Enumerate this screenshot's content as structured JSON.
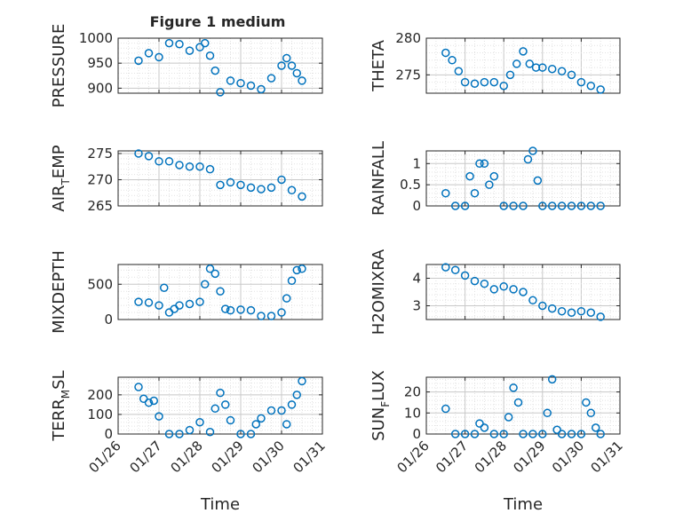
{
  "figure": {
    "title": "Figure 1 medium",
    "marker_color": "#0072BD"
  },
  "chart_data": [
    {
      "type": "scatter",
      "id": "pressure",
      "title": "Figure 1 medium",
      "ylabel": "PRESSURE",
      "ylabel_sub": "",
      "ylabel_tail": "",
      "xlabel": "",
      "xlim": [
        "01/26",
        "01/31"
      ],
      "ylim": [
        890,
        1000
      ],
      "yticks": [
        900,
        950,
        1000
      ],
      "ytick_labels": [
        "900",
        "950",
        "1000"
      ],
      "grid": true,
      "show_xticklabels": false,
      "x": [
        "01/26 12:00",
        "01/26 18:00",
        "01/27 00:00",
        "01/27 06:00",
        "01/27 12:00",
        "01/27 18:00",
        "01/28 00:00",
        "01/28 03:00",
        "01/28 06:00",
        "01/28 09:00",
        "01/28 12:00",
        "01/28 18:00",
        "01/29 00:00",
        "01/29 06:00",
        "01/29 12:00",
        "01/29 18:00",
        "01/30 00:00",
        "01/30 03:00",
        "01/30 06:00",
        "01/30 09:00",
        "01/30 12:00"
      ],
      "y": [
        955,
        970,
        962,
        990,
        988,
        975,
        982,
        990,
        965,
        935,
        892,
        915,
        910,
        905,
        898,
        920,
        945,
        960,
        945,
        930,
        915
      ]
    },
    {
      "type": "scatter",
      "id": "theta",
      "title": "",
      "ylabel": "THETA",
      "ylabel_sub": "",
      "ylabel_tail": "",
      "xlabel": "",
      "xlim": [
        "01/26",
        "01/31"
      ],
      "ylim": [
        272.5,
        280
      ],
      "yticks": [
        275,
        280
      ],
      "ytick_labels": [
        "275",
        "280"
      ],
      "grid": true,
      "show_xticklabels": false,
      "x": [
        "01/26 12:00",
        "01/26 16:00",
        "01/26 20:00",
        "01/27 00:00",
        "01/27 06:00",
        "01/27 12:00",
        "01/27 18:00",
        "01/28 00:00",
        "01/28 04:00",
        "01/28 08:00",
        "01/28 12:00",
        "01/28 16:00",
        "01/28 20:00",
        "01/29 00:00",
        "01/29 06:00",
        "01/29 12:00",
        "01/29 18:00",
        "01/30 00:00",
        "01/30 06:00",
        "01/30 12:00"
      ],
      "y": [
        278,
        277,
        275.5,
        274,
        273.8,
        274,
        274,
        273.5,
        275,
        276.5,
        278.2,
        276.5,
        276,
        276,
        275.8,
        275.5,
        275,
        274,
        273.5,
        273
      ]
    },
    {
      "type": "scatter",
      "id": "air_temp",
      "title": "",
      "ylabel": "AIR",
      "ylabel_sub": "T",
      "ylabel_tail": "EMP",
      "xlabel": "",
      "xlim": [
        "01/26",
        "01/31"
      ],
      "ylim": [
        265,
        275.5
      ],
      "yticks": [
        265,
        270,
        275
      ],
      "ytick_labels": [
        "265",
        "270",
        "275"
      ],
      "grid": true,
      "show_xticklabels": false,
      "x": [
        "01/26 12:00",
        "01/26 18:00",
        "01/27 00:00",
        "01/27 06:00",
        "01/27 12:00",
        "01/27 18:00",
        "01/28 00:00",
        "01/28 06:00",
        "01/28 12:00",
        "01/28 18:00",
        "01/29 00:00",
        "01/29 06:00",
        "01/29 12:00",
        "01/29 18:00",
        "01/30 00:00",
        "01/30 06:00",
        "01/30 12:00"
      ],
      "y": [
        275,
        274.5,
        273.5,
        273.5,
        272.8,
        272.5,
        272.5,
        272,
        269,
        269.5,
        269,
        268.5,
        268.2,
        268.5,
        270,
        268,
        266.8
      ]
    },
    {
      "type": "scatter",
      "id": "rainfall",
      "title": "",
      "ylabel": "RAINFALL",
      "ylabel_sub": "",
      "ylabel_tail": "",
      "xlabel": "",
      "xlim": [
        "01/26",
        "01/31"
      ],
      "ylim": [
        0,
        1.3
      ],
      "yticks": [
        0,
        0.5,
        1
      ],
      "ytick_labels": [
        "0",
        "0.5",
        "1"
      ],
      "grid": true,
      "show_xticklabels": false,
      "x": [
        "01/26 12:00",
        "01/26 18:00",
        "01/27 00:00",
        "01/27 03:00",
        "01/27 06:00",
        "01/27 09:00",
        "01/27 12:00",
        "01/27 15:00",
        "01/27 18:00",
        "01/28 00:00",
        "01/28 06:00",
        "01/28 12:00",
        "01/28 15:00",
        "01/28 18:00",
        "01/28 21:00",
        "01/29 00:00",
        "01/29 06:00",
        "01/29 12:00",
        "01/29 18:00",
        "01/30 00:00",
        "01/30 06:00",
        "01/30 12:00"
      ],
      "y": [
        0.3,
        0,
        0,
        0.7,
        0.3,
        1,
        1,
        0.5,
        0.7,
        0,
        0,
        0,
        1.1,
        1.3,
        0.6,
        0,
        0,
        0,
        0,
        0,
        0,
        0
      ]
    },
    {
      "type": "scatter",
      "id": "mixdepth",
      "title": "",
      "ylabel": "MIXDEPTH",
      "ylabel_sub": "",
      "ylabel_tail": "",
      "xlabel": "",
      "xlim": [
        "01/26",
        "01/31"
      ],
      "ylim": [
        0,
        780
      ],
      "yticks": [
        0,
        500
      ],
      "ytick_labels": [
        "0",
        "500"
      ],
      "grid": true,
      "show_xticklabels": false,
      "x": [
        "01/26 12:00",
        "01/26 18:00",
        "01/27 00:00",
        "01/27 03:00",
        "01/27 06:00",
        "01/27 09:00",
        "01/27 12:00",
        "01/27 18:00",
        "01/28 00:00",
        "01/28 03:00",
        "01/28 06:00",
        "01/28 09:00",
        "01/28 12:00",
        "01/28 15:00",
        "01/28 18:00",
        "01/29 00:00",
        "01/29 06:00",
        "01/29 12:00",
        "01/29 18:00",
        "01/30 00:00",
        "01/30 03:00",
        "01/30 06:00",
        "01/30 09:00",
        "01/30 12:00"
      ],
      "y": [
        250,
        240,
        200,
        450,
        100,
        150,
        200,
        220,
        250,
        500,
        720,
        650,
        400,
        150,
        130,
        140,
        130,
        50,
        50,
        100,
        300,
        550,
        700,
        720
      ]
    },
    {
      "type": "scatter",
      "id": "h2omixra",
      "title": "",
      "ylabel": "H2OMIXRA",
      "ylabel_sub": "",
      "ylabel_tail": "",
      "xlabel": "",
      "xlim": [
        "01/26",
        "01/31"
      ],
      "ylim": [
        2.5,
        4.5
      ],
      "yticks": [
        3,
        4
      ],
      "ytick_labels": [
        "3",
        "4"
      ],
      "grid": true,
      "show_xticklabels": false,
      "x": [
        "01/26 12:00",
        "01/26 18:00",
        "01/27 00:00",
        "01/27 06:00",
        "01/27 12:00",
        "01/27 18:00",
        "01/28 00:00",
        "01/28 06:00",
        "01/28 12:00",
        "01/28 18:00",
        "01/29 00:00",
        "01/29 06:00",
        "01/29 12:00",
        "01/29 18:00",
        "01/30 00:00",
        "01/30 06:00",
        "01/30 12:00"
      ],
      "y": [
        4.4,
        4.3,
        4.1,
        3.9,
        3.8,
        3.6,
        3.7,
        3.6,
        3.5,
        3.2,
        3.0,
        2.9,
        2.8,
        2.75,
        2.8,
        2.75,
        2.6
      ]
    },
    {
      "type": "scatter",
      "id": "terr_msl",
      "title": "",
      "ylabel": "TERR",
      "ylabel_sub": "M",
      "ylabel_tail": "SL",
      "xlabel": "Time",
      "xlim": [
        "01/26",
        "01/31"
      ],
      "ylim": [
        0,
        290
      ],
      "yticks": [
        0,
        100,
        200
      ],
      "ytick_labels": [
        "0",
        "100",
        "200"
      ],
      "grid": true,
      "show_xticklabels": true,
      "xticks": [
        "01/26",
        "01/27",
        "01/28",
        "01/29",
        "01/30",
        "01/31"
      ],
      "x": [
        "01/26 12:00",
        "01/26 15:00",
        "01/26 18:00",
        "01/26 21:00",
        "01/27 00:00",
        "01/27 06:00",
        "01/27 12:00",
        "01/27 18:00",
        "01/28 00:00",
        "01/28 06:00",
        "01/28 09:00",
        "01/28 12:00",
        "01/28 15:00",
        "01/28 18:00",
        "01/29 00:00",
        "01/29 06:00",
        "01/29 09:00",
        "01/29 12:00",
        "01/29 18:00",
        "01/30 00:00",
        "01/30 03:00",
        "01/30 06:00",
        "01/30 09:00",
        "01/30 12:00"
      ],
      "y": [
        240,
        180,
        160,
        170,
        90,
        0,
        0,
        20,
        60,
        10,
        130,
        210,
        150,
        70,
        0,
        0,
        50,
        80,
        120,
        120,
        50,
        150,
        200,
        270
      ]
    },
    {
      "type": "scatter",
      "id": "sun_flux",
      "title": "",
      "ylabel": "SUN",
      "ylabel_sub": "F",
      "ylabel_tail": "LUX",
      "xlabel": "Time",
      "xlim": [
        "01/26",
        "01/31"
      ],
      "ylim": [
        0,
        27
      ],
      "yticks": [
        0,
        10,
        20
      ],
      "ytick_labels": [
        "0",
        "10",
        "20"
      ],
      "grid": true,
      "show_xticklabels": true,
      "xticks": [
        "01/26",
        "01/27",
        "01/28",
        "01/29",
        "01/30",
        "01/31"
      ],
      "x": [
        "01/26 12:00",
        "01/26 18:00",
        "01/27 00:00",
        "01/27 06:00",
        "01/27 09:00",
        "01/27 12:00",
        "01/27 18:00",
        "01/28 00:00",
        "01/28 03:00",
        "01/28 06:00",
        "01/28 09:00",
        "01/28 12:00",
        "01/28 18:00",
        "01/29 00:00",
        "01/29 03:00",
        "01/29 06:00",
        "01/29 09:00",
        "01/29 12:00",
        "01/29 18:00",
        "01/30 00:00",
        "01/30 03:00",
        "01/30 06:00",
        "01/30 09:00",
        "01/30 12:00"
      ],
      "y": [
        12,
        0,
        0,
        0,
        5,
        3,
        0,
        0,
        8,
        22,
        15,
        0,
        0,
        0,
        10,
        26,
        2,
        0,
        0,
        0,
        15,
        10,
        3,
        0
      ]
    }
  ]
}
